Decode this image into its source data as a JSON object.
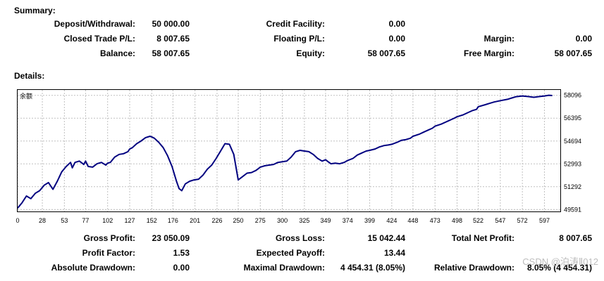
{
  "summary": {
    "title": "Summary:",
    "deposit_label": "Deposit/Withdrawal:",
    "deposit_value": "50 000.00",
    "credit_label": "Credit Facility:",
    "credit_value": "0.00",
    "closed_label": "Closed Trade P/L:",
    "closed_value": "8 007.65",
    "floating_label": "Floating P/L:",
    "floating_value": "0.00",
    "margin_label": "Margin:",
    "margin_value": "0.00",
    "balance_label": "Balance:",
    "balance_value": "58 007.65",
    "equity_label": "Equity:",
    "equity_value": "58 007.65",
    "free_margin_label": "Free Margin:",
    "free_margin_value": "58 007.65"
  },
  "details": {
    "title": "Details:",
    "gross_profit_label": "Gross Profit:",
    "gross_profit_value": "23 050.09",
    "gross_loss_label": "Gross Loss:",
    "gross_loss_value": "15 042.44",
    "total_net_label": "Total Net Profit:",
    "total_net_value": "8 007.65",
    "profit_factor_label": "Profit Factor:",
    "profit_factor_value": "1.53",
    "expected_payoff_label": "Expected Payoff:",
    "expected_payoff_value": "13.44",
    "abs_drawdown_label": "Absolute Drawdown:",
    "abs_drawdown_value": "0.00",
    "max_drawdown_label": "Maximal Drawdown:",
    "max_drawdown_value": "4 454.31 (8.05%)",
    "rel_drawdown_label": "Relative Drawdown:",
    "rel_drawdown_value": "8.05% (4 454.31)"
  },
  "watermark": "CSDN @泊涛Ⅱ012",
  "colors": {
    "line": "#000080",
    "grid": "#c0c0c0"
  },
  "chart_data": {
    "type": "line",
    "title": "余额",
    "xlabel": "",
    "ylabel": "",
    "x_ticks": [
      0,
      28,
      53,
      77,
      102,
      127,
      152,
      176,
      201,
      226,
      250,
      275,
      300,
      325,
      349,
      374,
      399,
      424,
      448,
      473,
      498,
      522,
      547,
      572,
      597
    ],
    "y_ticks": [
      49591,
      51292,
      52993,
      54694,
      56395,
      58096
    ],
    "xlim": [
      0,
      615
    ],
    "ylim": [
      49450,
      58500
    ],
    "grid": true,
    "series": [
      {
        "x": [
          0,
          5,
          10,
          15,
          20,
          25,
          30,
          35,
          40,
          45,
          50,
          55,
          60,
          62,
          65,
          70,
          75,
          77,
          80,
          85,
          90,
          95,
          100,
          102,
          105,
          110,
          115,
          120,
          125,
          127,
          130,
          135,
          140,
          145,
          150,
          152,
          155,
          160,
          165,
          170,
          175,
          180,
          183,
          186,
          190,
          195,
          200,
          205,
          210,
          215,
          220,
          225,
          230,
          235,
          240,
          245,
          250,
          255,
          260,
          265,
          270,
          272,
          275,
          280,
          285,
          290,
          295,
          300,
          305,
          310,
          315,
          320,
          325,
          330,
          335,
          340,
          345,
          349,
          352,
          355,
          360,
          365,
          370,
          374,
          380,
          385,
          390,
          395,
          399,
          405,
          410,
          415,
          420,
          424,
          430,
          435,
          440,
          445,
          448,
          455,
          460,
          465,
          470,
          473,
          480,
          485,
          490,
          495,
          498,
          505,
          510,
          515,
          520,
          522,
          530,
          535,
          540,
          547,
          555,
          560,
          565,
          572,
          580,
          585,
          590,
          597,
          602,
          606
        ],
        "y": [
          49700,
          50100,
          50600,
          50400,
          50800,
          51000,
          51400,
          51600,
          51100,
          51700,
          52400,
          52800,
          53100,
          52700,
          53100,
          53200,
          52950,
          53200,
          52800,
          52750,
          53000,
          53100,
          52900,
          53050,
          53100,
          53500,
          53700,
          53750,
          53900,
          54100,
          54200,
          54500,
          54700,
          54950,
          55050,
          55000,
          54900,
          54600,
          54200,
          53600,
          52800,
          51700,
          51150,
          51000,
          51500,
          51700,
          51800,
          51850,
          52150,
          52600,
          52900,
          53400,
          53950,
          54500,
          54450,
          53700,
          51800,
          52050,
          52300,
          52350,
          52500,
          52600,
          52750,
          52850,
          52900,
          52950,
          53100,
          53150,
          53200,
          53500,
          53900,
          54000,
          53950,
          53900,
          53700,
          53400,
          53200,
          53300,
          53150,
          53000,
          53050,
          53000,
          53100,
          53250,
          53400,
          53650,
          53800,
          53950,
          54000,
          54100,
          54250,
          54350,
          54400,
          54450,
          54600,
          54750,
          54800,
          54900,
          55050,
          55200,
          55350,
          55500,
          55650,
          55800,
          55950,
          56100,
          56250,
          56400,
          56500,
          56650,
          56800,
          56950,
          57050,
          57250,
          57400,
          57500,
          57600,
          57700,
          57800,
          57900,
          58000,
          58050,
          58000,
          57950,
          58000,
          58050,
          58100,
          58080
        ]
      }
    ]
  }
}
